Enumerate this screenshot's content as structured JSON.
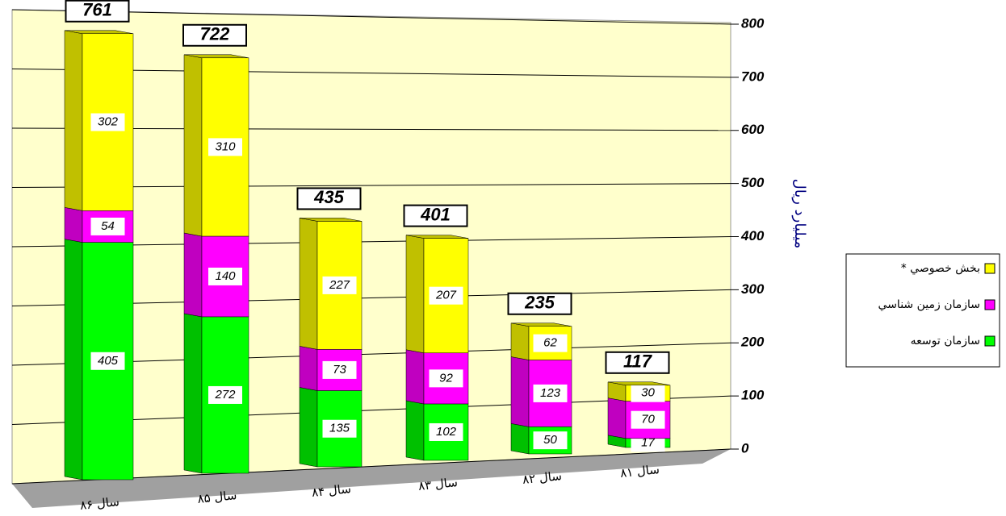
{
  "chart_data": {
    "type": "bar3d_stacked",
    "y_label": "میلیارد ریال",
    "categories": [
      "سال ۸۶",
      "سال ۸۵",
      "سال ۸۴",
      "سال ۸۳",
      "سال ۸۲",
      "سال ۸۱"
    ],
    "series": [
      {
        "name": "سازمان توسعه",
        "color": "#00ff00",
        "side": "#00c000",
        "values": [
          405,
          272,
          135,
          102,
          50,
          17
        ]
      },
      {
        "name": "سازمان زمین شناسي",
        "color": "#ff00ff",
        "side": "#c000c0",
        "values": [
          54,
          140,
          73,
          92,
          123,
          70
        ]
      },
      {
        "name": "بخش خصوصي *",
        "color": "#ffff00",
        "side": "#c0c000",
        "values": [
          302,
          310,
          227,
          207,
          62,
          30
        ]
      }
    ],
    "totals": [
      761,
      722,
      435,
      401,
      235,
      117
    ],
    "ylim": [
      0,
      800
    ],
    "yticks": [
      0,
      100,
      200,
      300,
      400,
      500,
      600,
      700,
      800
    ],
    "grid": true
  }
}
